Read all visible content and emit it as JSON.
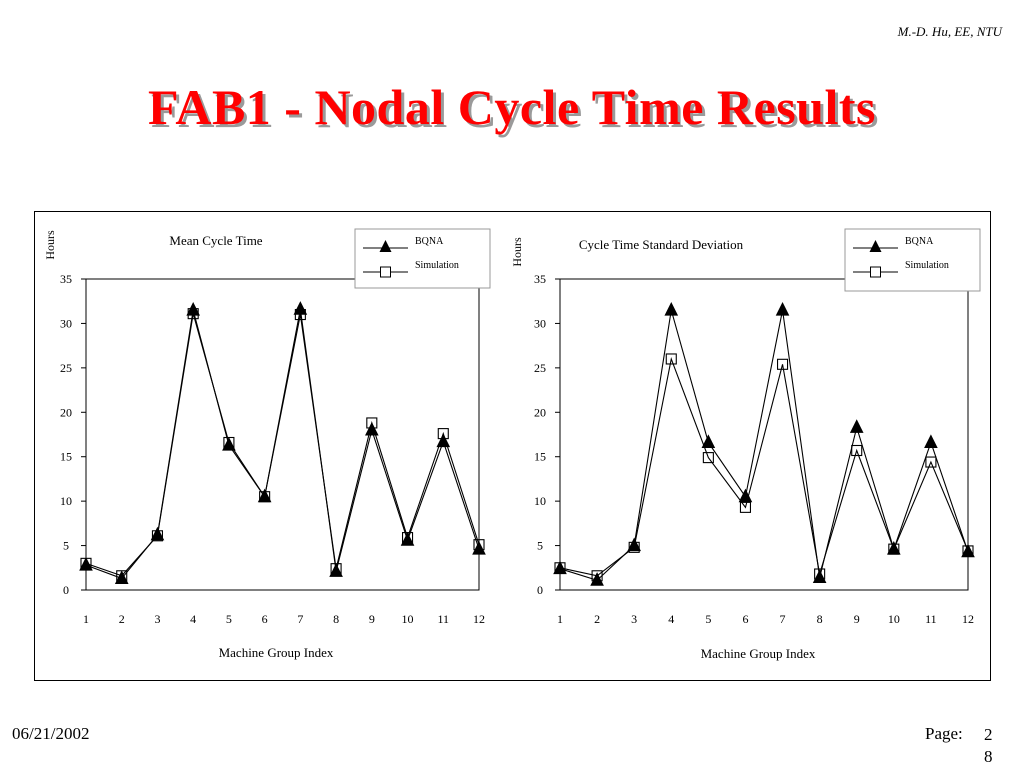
{
  "header": {
    "author": "M.-D. Hu, EE, NTU",
    "title": "FAB1 - Nodal Cycle Time Results"
  },
  "footer": {
    "date": "06/21/2002",
    "page_label": "Page:",
    "page_number": "28"
  },
  "chart_data": [
    {
      "type": "line",
      "title": "Mean Cycle Time",
      "ylabel": "Hours",
      "xlabel": "Machine Group Index",
      "categories": [
        "1",
        "2",
        "3",
        "4",
        "5",
        "6",
        "7",
        "8",
        "9",
        "10",
        "11",
        "12"
      ],
      "ylim": [
        0,
        35
      ],
      "yticks": [
        "0",
        "5",
        "10",
        "15",
        "20",
        "25",
        "30",
        "35"
      ],
      "legend_position": "top-right",
      "grid": false,
      "series": [
        {
          "name": "BQNA",
          "marker": "filled-triangle",
          "values": [
            2.8,
            1.3,
            6.2,
            31.5,
            16.3,
            10.5,
            31.6,
            2.1,
            18.0,
            5.6,
            16.7,
            4.6
          ]
        },
        {
          "name": "Simulation",
          "marker": "open-square",
          "values": [
            3.0,
            1.6,
            6.1,
            31.1,
            16.6,
            10.5,
            31.0,
            2.4,
            18.8,
            5.9,
            17.6,
            5.1
          ]
        }
      ]
    },
    {
      "type": "line",
      "title": "Cycle Time Standard Deviation",
      "ylabel": "Hours",
      "xlabel": "Machine Group Index",
      "categories": [
        "1",
        "2",
        "3",
        "4",
        "5",
        "6",
        "7",
        "8",
        "9",
        "10",
        "11",
        "12"
      ],
      "ylim": [
        0,
        35
      ],
      "yticks": [
        "0",
        "5",
        "10",
        "15",
        "20",
        "25",
        "30",
        "35"
      ],
      "legend_position": "top-right",
      "grid": false,
      "series": [
        {
          "name": "BQNA",
          "marker": "filled-triangle",
          "values": [
            2.4,
            1.1,
            5.0,
            31.5,
            16.6,
            10.5,
            31.5,
            1.4,
            18.3,
            4.6,
            16.6,
            4.3
          ]
        },
        {
          "name": "Simulation",
          "marker": "open-square",
          "values": [
            2.5,
            1.6,
            4.8,
            26.0,
            14.9,
            9.3,
            25.4,
            1.8,
            15.7,
            4.6,
            14.4,
            4.4
          ]
        }
      ]
    }
  ]
}
